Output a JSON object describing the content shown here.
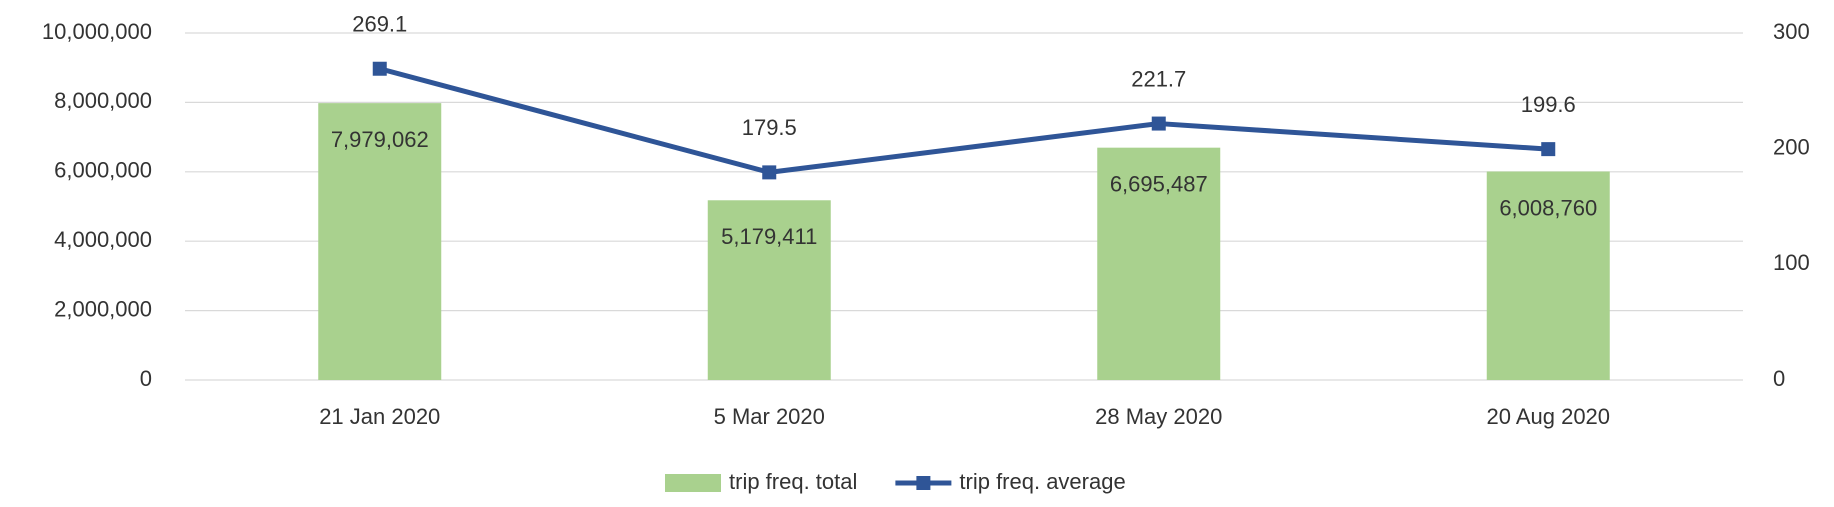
{
  "chart_data": {
    "type": "bar",
    "categories": [
      "21 Jan 2020",
      "5 Mar 2020",
      "28 May 2020",
      "20 Aug 2020"
    ],
    "series": [
      {
        "name": "trip freq. total",
        "type": "bar",
        "color": "#a9d18e",
        "values": [
          7979062,
          5179411,
          6695487,
          6008760
        ],
        "value_labels": [
          "7,979,062",
          "5,179,411",
          "6,695,487",
          "6,008,760"
        ]
      },
      {
        "name": "trip freq. average",
        "type": "line",
        "axis": "y2",
        "color": "#2f5597",
        "values": [
          269.1,
          179.5,
          221.7,
          199.6
        ]
      }
    ],
    "ylim": [
      0,
      10000000
    ],
    "yticks": [
      0,
      {
        "value": 2000000,
        "label": "2,000,000"
      },
      {
        "value": 4000000,
        "label": "4,000,000"
      },
      {
        "value": 6000000,
        "label": "6,000,000"
      },
      {
        "value": 8000000,
        "label": "8,000,000"
      },
      {
        "value": 10000000,
        "label": "10,000,000"
      }
    ],
    "y2lim": [
      0,
      300
    ],
    "y2ticks": [
      0,
      100,
      200,
      300
    ],
    "grid": true,
    "legend": "bottom"
  }
}
